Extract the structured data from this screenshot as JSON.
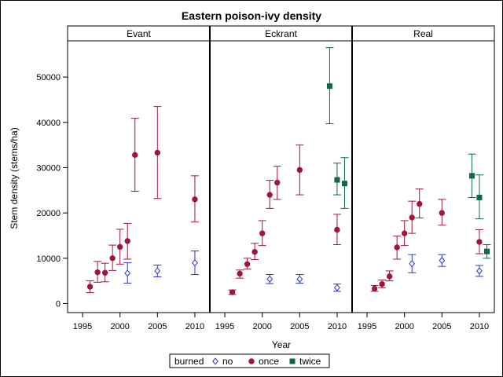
{
  "chart_data": {
    "type": "scatter",
    "title": "Eastern poison-ivy density",
    "xlabel": "Year",
    "ylabel": "Stem density (stems/ha)",
    "xlim": [
      1993,
      2012
    ],
    "ylim": [
      -2000,
      58000
    ],
    "x_ticks": [
      1995,
      2000,
      2005,
      2010
    ],
    "y_ticks": [
      0,
      10000,
      20000,
      30000,
      40000,
      50000
    ],
    "panels": [
      "Evant",
      "Eckrant",
      "Real"
    ],
    "legend": {
      "title": "burned",
      "position": "bottom",
      "entries": [
        {
          "name": "no",
          "color": "#3333cc",
          "marker": "diamond-open"
        },
        {
          "name": "once",
          "color": "#a0163a",
          "marker": "circle"
        },
        {
          "name": "twice",
          "color": "#0d6650",
          "marker": "square"
        }
      ]
    },
    "data": {
      "Evant": {
        "no": [
          {
            "x": 2001,
            "y": 6700,
            "lo": 4500,
            "hi": 9000
          },
          {
            "x": 2005,
            "y": 7200,
            "lo": 5900,
            "hi": 8500
          },
          {
            "x": 2010,
            "y": 9000,
            "lo": 6400,
            "hi": 11600
          }
        ],
        "once": [
          {
            "x": 1996,
            "y": 3700,
            "lo": 2400,
            "hi": 5000
          },
          {
            "x": 1997,
            "y": 6900,
            "lo": 4700,
            "hi": 9300
          },
          {
            "x": 1998,
            "y": 6800,
            "lo": 4800,
            "hi": 8900
          },
          {
            "x": 1999,
            "y": 10000,
            "lo": 7300,
            "hi": 12900
          },
          {
            "x": 2000,
            "y": 12500,
            "lo": 8700,
            "hi": 16400
          },
          {
            "x": 2001,
            "y": 13800,
            "lo": 9800,
            "hi": 17700
          },
          {
            "x": 2002,
            "y": 32800,
            "lo": 24800,
            "hi": 40900
          },
          {
            "x": 2005,
            "y": 33300,
            "lo": 23200,
            "hi": 43500
          },
          {
            "x": 2010,
            "y": 23000,
            "lo": 18000,
            "hi": 28200
          }
        ],
        "twice": []
      },
      "Eckrant": {
        "no": [
          {
            "x": 2001,
            "y": 5400,
            "lo": 4400,
            "hi": 6400
          },
          {
            "x": 2005,
            "y": 5400,
            "lo": 4500,
            "hi": 6400
          },
          {
            "x": 2010,
            "y": 3500,
            "lo": 2700,
            "hi": 4300
          }
        ],
        "once": [
          {
            "x": 1996,
            "y": 2500,
            "lo": 2000,
            "hi": 3000
          },
          {
            "x": 1997,
            "y": 6600,
            "lo": 5600,
            "hi": 7400
          },
          {
            "x": 1998,
            "y": 8700,
            "lo": 7600,
            "hi": 10000
          },
          {
            "x": 1999,
            "y": 11400,
            "lo": 9700,
            "hi": 13300
          },
          {
            "x": 2000,
            "y": 15500,
            "lo": 12800,
            "hi": 18300
          },
          {
            "x": 2001,
            "y": 24000,
            "lo": 21000,
            "hi": 27200
          },
          {
            "x": 2002,
            "y": 26700,
            "lo": 23000,
            "hi": 30300
          },
          {
            "x": 2005,
            "y": 29500,
            "lo": 24000,
            "hi": 35000
          },
          {
            "x": 2010,
            "y": 16300,
            "lo": 13000,
            "hi": 19700
          }
        ],
        "twice": [
          {
            "x": 2009,
            "y": 48000,
            "lo": 39700,
            "hi": 56500
          },
          {
            "x": 2010,
            "y": 27300,
            "lo": 24000,
            "hi": 31000
          },
          {
            "x": 2011,
            "y": 26500,
            "lo": 21000,
            "hi": 32200
          }
        ]
      },
      "Real": {
        "no": [
          {
            "x": 2001,
            "y": 8800,
            "lo": 6800,
            "hi": 10800
          },
          {
            "x": 2005,
            "y": 9500,
            "lo": 8200,
            "hi": 10800
          },
          {
            "x": 2010,
            "y": 7200,
            "lo": 6000,
            "hi": 8400
          }
        ],
        "once": [
          {
            "x": 1996,
            "y": 3300,
            "lo": 2700,
            "hi": 4000
          },
          {
            "x": 1997,
            "y": 4300,
            "lo": 3500,
            "hi": 5200
          },
          {
            "x": 1998,
            "y": 6000,
            "lo": 5000,
            "hi": 7200
          },
          {
            "x": 1999,
            "y": 12400,
            "lo": 9800,
            "hi": 14900
          },
          {
            "x": 2000,
            "y": 15500,
            "lo": 12800,
            "hi": 18300
          },
          {
            "x": 2001,
            "y": 19000,
            "lo": 15500,
            "hi": 22600
          },
          {
            "x": 2002,
            "y": 22000,
            "lo": 18900,
            "hi": 25300
          },
          {
            "x": 2005,
            "y": 20000,
            "lo": 17300,
            "hi": 23000
          },
          {
            "x": 2010,
            "y": 13600,
            "lo": 11000,
            "hi": 16300
          }
        ],
        "twice": [
          {
            "x": 2009,
            "y": 28200,
            "lo": 23400,
            "hi": 33000
          },
          {
            "x": 2010,
            "y": 23400,
            "lo": 18700,
            "hi": 28400
          },
          {
            "x": 2011,
            "y": 11500,
            "lo": 10000,
            "hi": 13000
          }
        ]
      }
    }
  }
}
